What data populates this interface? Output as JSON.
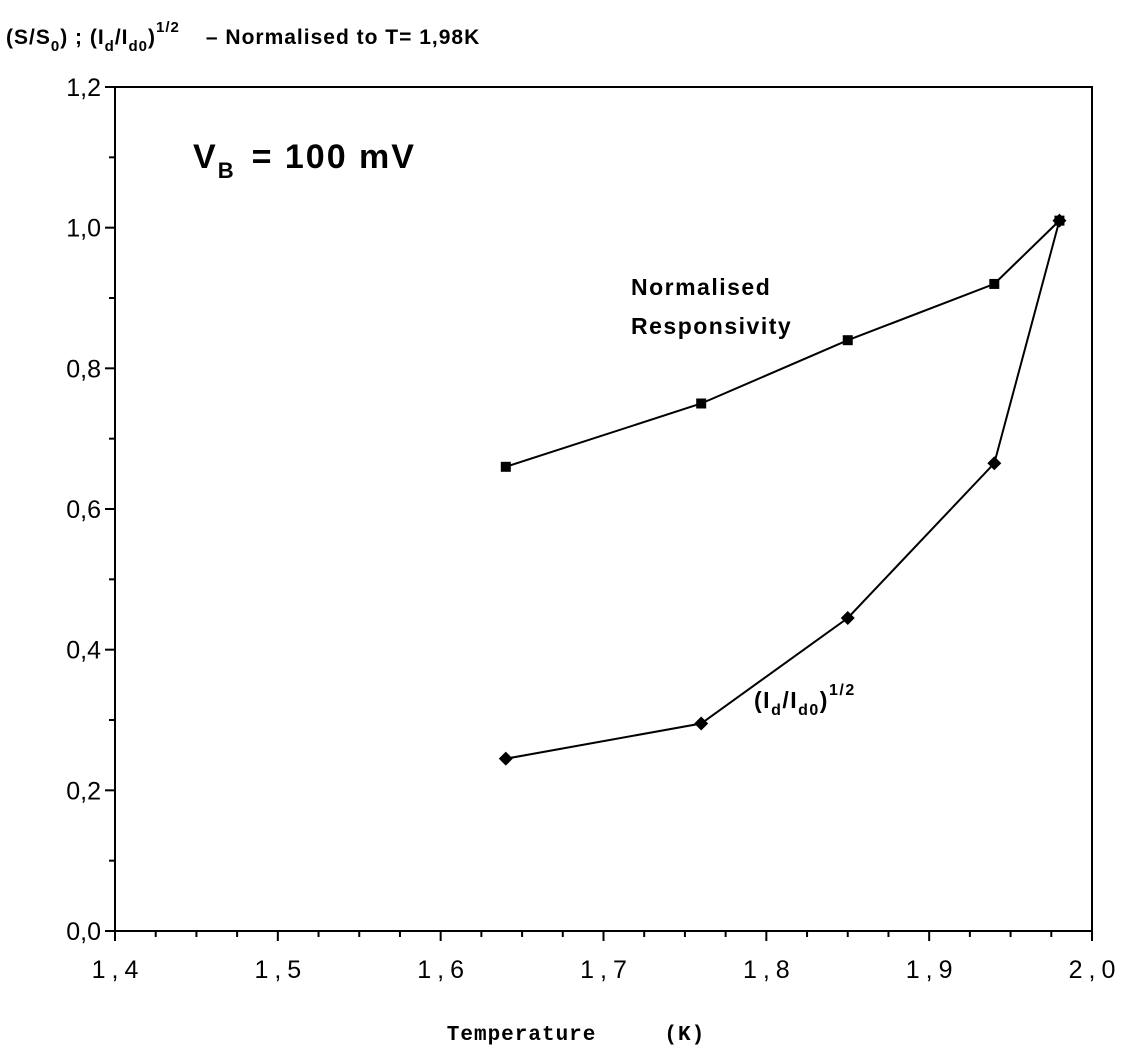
{
  "chart_data": {
    "type": "line",
    "title": "(S/S0) ; (Id/Id0)1/2 - Normalised to T= 1,98K",
    "title_parts": {
      "s": "(S/S",
      "s_sub": "0",
      "sep": ") ; (I",
      "d_sub": "d",
      "slash": "/I",
      "d0_sub": "d0",
      "close": ")",
      "sup": "1/2",
      "note": "–  Normalised to T= 1,98K"
    },
    "annotation_vb": {
      "v": "V",
      "sub": "B",
      "value": "= 100 mV"
    },
    "xlabel": "Temperature     (K)",
    "ylabel": "",
    "xlim": [
      1.4,
      2.0
    ],
    "ylim": [
      0.0,
      1.2
    ],
    "x_ticks": [
      "1,4",
      "1,5",
      "1,6",
      "1,7",
      "1,8",
      "1,9",
      "2,0"
    ],
    "y_ticks": [
      "0,0",
      "0,2",
      "0,4",
      "0,6",
      "0,8",
      "1,0",
      "1,2"
    ],
    "grid": false,
    "series": [
      {
        "name": "Normalised Responsivity",
        "marker": "square",
        "label_lines": [
          "Normalised",
          "Responsivity"
        ],
        "x": [
          1.64,
          1.76,
          1.85,
          1.94,
          1.98
        ],
        "y": [
          0.66,
          0.75,
          0.84,
          0.92,
          1.01
        ]
      },
      {
        "name": "(Id/Id0)1/2",
        "marker": "diamond",
        "label_parts": {
          "open": "(I",
          "d": "d",
          "slash": "/I",
          "d0": "d0",
          "close": ")",
          "sup": "1/2"
        },
        "x": [
          1.64,
          1.76,
          1.85,
          1.94,
          1.98
        ],
        "y": [
          0.245,
          0.295,
          0.445,
          0.665,
          1.01
        ]
      }
    ]
  }
}
